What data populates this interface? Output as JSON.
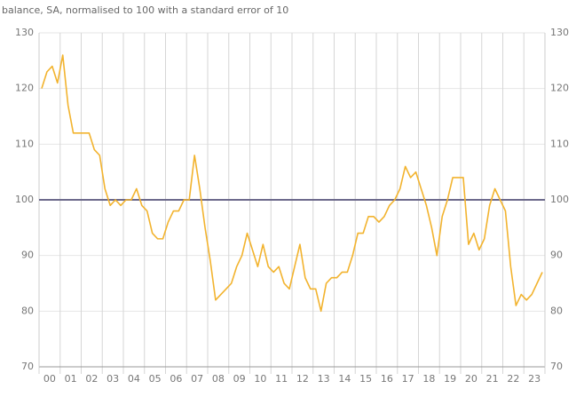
{
  "chart_data": {
    "type": "line",
    "title": "balance, SA, normalised to 100 with a standard error of 10",
    "categories": [
      "00",
      null,
      null,
      null,
      "01",
      null,
      null,
      null,
      "02",
      null,
      null,
      null,
      "03",
      null,
      null,
      null,
      "04",
      null,
      null,
      null,
      "05",
      null,
      null,
      null,
      "06",
      null,
      null,
      null,
      "07",
      null,
      null,
      null,
      "08",
      null,
      null,
      null,
      "09",
      null,
      null,
      null,
      "10",
      null,
      null,
      null,
      "11",
      null,
      null,
      null,
      "12",
      null,
      null,
      null,
      "13",
      null,
      null,
      null,
      "14",
      null,
      null,
      null,
      "15",
      null,
      null,
      null,
      "16",
      null,
      null,
      null,
      "17",
      null,
      null,
      null,
      "18",
      null,
      null,
      null,
      "19",
      null,
      null,
      null,
      "20",
      null,
      null,
      null,
      "21",
      null,
      null,
      null,
      "22",
      null,
      null,
      null,
      "23",
      null,
      null,
      null
    ],
    "series": [
      {
        "name": null,
        "color": "#f2b32e",
        "values": [
          120,
          123,
          124,
          121,
          126,
          117,
          112,
          112,
          112,
          112,
          109,
          108,
          102,
          99,
          100,
          99,
          100,
          100,
          102,
          99,
          98,
          94,
          93,
          93,
          96,
          98,
          98,
          100,
          100,
          108,
          102,
          95,
          89,
          82,
          83,
          84,
          85,
          88,
          90,
          94,
          91,
          88,
          92,
          88,
          87,
          88,
          85,
          84,
          88,
          92,
          86,
          84,
          84,
          80,
          85,
          86,
          86,
          87,
          87,
          90,
          94,
          94,
          97,
          97,
          96,
          97,
          99,
          100,
          102,
          106,
          104,
          105,
          102,
          99,
          95,
          90,
          97,
          100,
          104,
          104,
          104,
          92,
          94,
          91,
          93,
          99,
          102,
          100,
          98,
          88,
          81,
          83,
          82,
          83,
          85,
          87
        ]
      }
    ],
    "reference_line": 100,
    "ylim": [
      70,
      130
    ],
    "yticks": [
      70,
      80,
      90,
      100,
      110,
      120,
      130
    ],
    "y2lim": [
      70,
      130
    ],
    "y2ticks": [
      70,
      80,
      90,
      100,
      110,
      120,
      130
    ],
    "grid": true
  }
}
